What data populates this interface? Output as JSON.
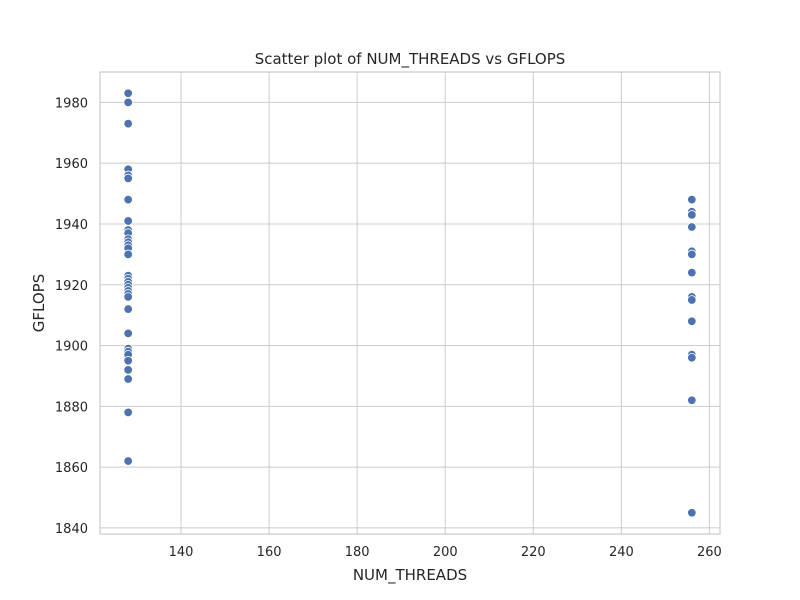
{
  "chart_data": {
    "type": "scatter",
    "title": "Scatter plot of NUM_THREADS vs GFLOPS",
    "xlabel": "NUM_THREADS",
    "ylabel": "GFLOPS",
    "xlim": [
      121.6,
      262.4
    ],
    "ylim": [
      1838,
      1990
    ],
    "x_ticks": [
      140,
      160,
      180,
      200,
      220,
      240,
      260
    ],
    "y_ticks": [
      1840,
      1860,
      1880,
      1900,
      1920,
      1940,
      1960,
      1980
    ],
    "grid": true,
    "marker_color": "#4c72b0",
    "points": [
      {
        "x": 128,
        "y": 1983
      },
      {
        "x": 128,
        "y": 1980
      },
      {
        "x": 128,
        "y": 1973
      },
      {
        "x": 128,
        "y": 1958
      },
      {
        "x": 128,
        "y": 1956
      },
      {
        "x": 128,
        "y": 1955
      },
      {
        "x": 128,
        "y": 1948
      },
      {
        "x": 128,
        "y": 1941
      },
      {
        "x": 128,
        "y": 1938
      },
      {
        "x": 128,
        "y": 1937
      },
      {
        "x": 128,
        "y": 1935
      },
      {
        "x": 128,
        "y": 1934
      },
      {
        "x": 128,
        "y": 1933
      },
      {
        "x": 128,
        "y": 1932
      },
      {
        "x": 128,
        "y": 1930
      },
      {
        "x": 128,
        "y": 1923
      },
      {
        "x": 128,
        "y": 1922
      },
      {
        "x": 128,
        "y": 1921
      },
      {
        "x": 128,
        "y": 1920
      },
      {
        "x": 128,
        "y": 1919
      },
      {
        "x": 128,
        "y": 1918
      },
      {
        "x": 128,
        "y": 1917
      },
      {
        "x": 128,
        "y": 1916
      },
      {
        "x": 128,
        "y": 1912
      },
      {
        "x": 128,
        "y": 1904
      },
      {
        "x": 128,
        "y": 1899
      },
      {
        "x": 128,
        "y": 1898
      },
      {
        "x": 128,
        "y": 1897
      },
      {
        "x": 128,
        "y": 1895
      },
      {
        "x": 128,
        "y": 1892
      },
      {
        "x": 128,
        "y": 1889
      },
      {
        "x": 128,
        "y": 1878
      },
      {
        "x": 128,
        "y": 1862
      },
      {
        "x": 256,
        "y": 1948
      },
      {
        "x": 256,
        "y": 1944
      },
      {
        "x": 256,
        "y": 1943
      },
      {
        "x": 256,
        "y": 1939
      },
      {
        "x": 256,
        "y": 1931
      },
      {
        "x": 256,
        "y": 1930
      },
      {
        "x": 256,
        "y": 1924
      },
      {
        "x": 256,
        "y": 1916
      },
      {
        "x": 256,
        "y": 1915
      },
      {
        "x": 256,
        "y": 1908
      },
      {
        "x": 256,
        "y": 1897
      },
      {
        "x": 256,
        "y": 1896
      },
      {
        "x": 256,
        "y": 1882
      },
      {
        "x": 256,
        "y": 1845
      }
    ]
  }
}
